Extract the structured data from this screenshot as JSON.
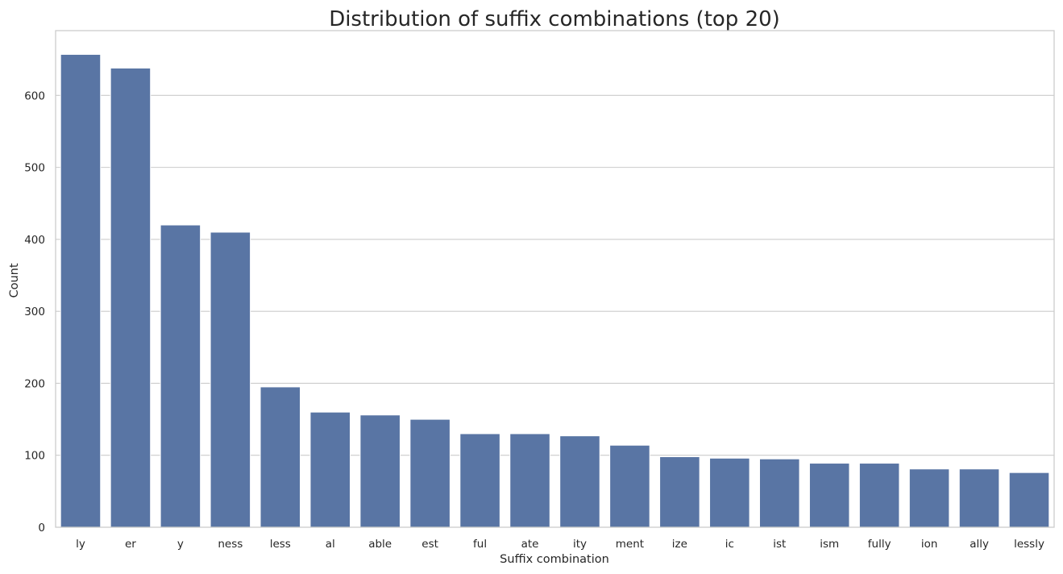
{
  "chart_data": {
    "type": "bar",
    "title": "Distribution of suffix combinations (top 20)",
    "xlabel": "Suffix combination",
    "ylabel": "Count",
    "categories": [
      "ly",
      "er",
      "y",
      "ness",
      "less",
      "al",
      "able",
      "est",
      "ful",
      "ate",
      "ity",
      "ment",
      "ize",
      "ic",
      "ist",
      "ism",
      "fully",
      "ion",
      "ally",
      "lessly"
    ],
    "values": [
      657,
      638,
      420,
      410,
      195,
      160,
      156,
      150,
      130,
      130,
      127,
      114,
      98,
      96,
      95,
      89,
      89,
      81,
      81,
      76
    ],
    "yticks": [
      0,
      100,
      200,
      300,
      400,
      500,
      600
    ],
    "ylim": [
      0,
      690
    ],
    "grid": "horizontal",
    "bar_color": "#5975a4"
  }
}
